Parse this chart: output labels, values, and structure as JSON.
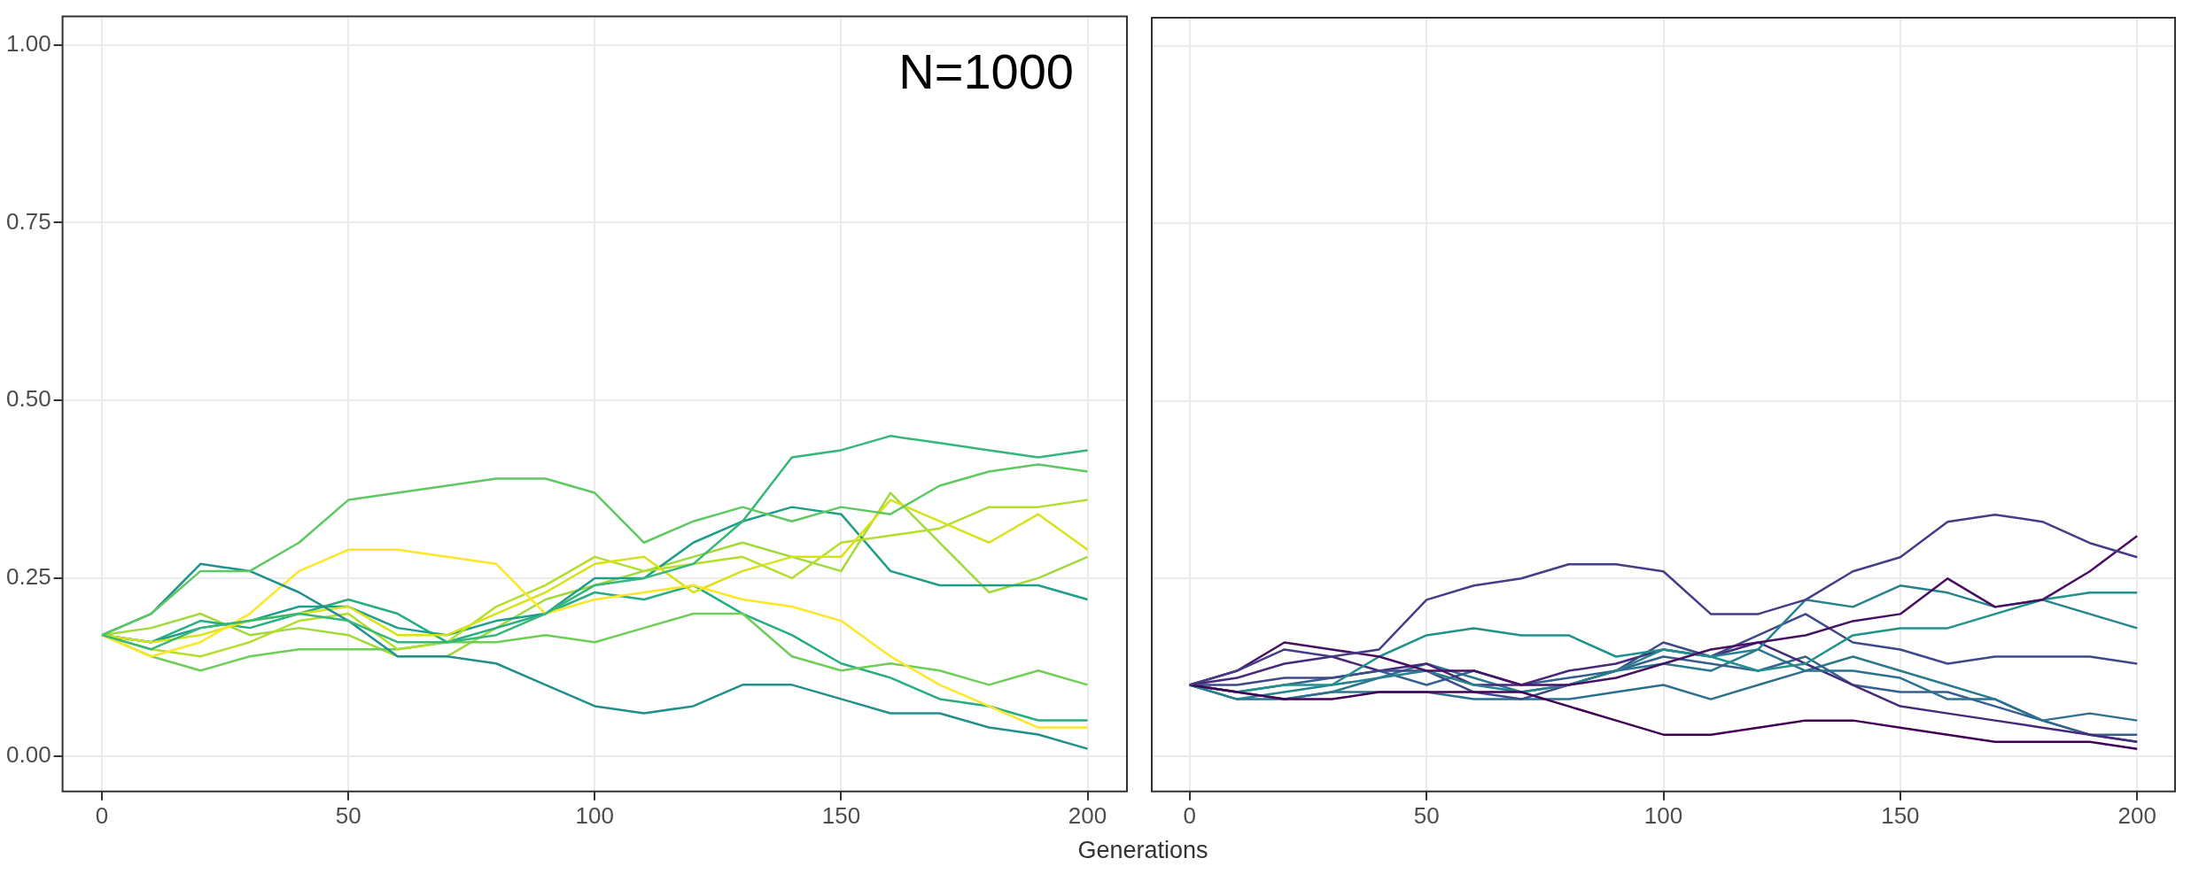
{
  "chart_data": [
    {
      "type": "line",
      "xlabel": "Generations",
      "annotations": [
        "N=1000"
      ],
      "xlim": [
        -8,
        208
      ],
      "xticks": [
        0,
        50,
        100,
        150,
        200
      ],
      "ylim": [
        -0.05,
        1.04
      ],
      "yticks": [
        {
          "value": 0,
          "label": "0.00"
        },
        {
          "value": 0.25,
          "label": "0.25"
        },
        {
          "value": 0.5,
          "label": "0.50"
        },
        {
          "value": 0.75,
          "label": "0.75"
        },
        {
          "value": 1,
          "label": "1.00"
        }
      ],
      "grid": true,
      "x": [
        0,
        10,
        20,
        30,
        40,
        50,
        60,
        70,
        80,
        90,
        100,
        110,
        120,
        130,
        140,
        150,
        160,
        170,
        180,
        190,
        200
      ],
      "series": [
        {
          "color": "#5ec962",
          "values": [
            0.17,
            0.2,
            0.26,
            0.26,
            0.3,
            0.36,
            0.37,
            0.38,
            0.39,
            0.39,
            0.37,
            0.3,
            0.33,
            0.35,
            0.33,
            0.35,
            0.34,
            0.38,
            0.4,
            0.41,
            0.4
          ]
        },
        {
          "color": "#35b779",
          "values": [
            0.17,
            0.15,
            0.18,
            0.19,
            0.2,
            0.19,
            0.16,
            0.16,
            0.17,
            0.2,
            0.24,
            0.25,
            0.27,
            0.33,
            0.42,
            0.43,
            0.45,
            0.44,
            0.43,
            0.42,
            0.43
          ]
        },
        {
          "color": "#21908d",
          "values": [
            0.17,
            0.2,
            0.27,
            0.26,
            0.23,
            0.19,
            0.14,
            0.14,
            0.13,
            0.1,
            0.07,
            0.06,
            0.07,
            0.1,
            0.1,
            0.08,
            0.06,
            0.06,
            0.04,
            0.03,
            0.01
          ]
        },
        {
          "color": "#fde725",
          "values": [
            0.17,
            0.14,
            0.16,
            0.2,
            0.26,
            0.29,
            0.29,
            0.28,
            0.27,
            0.2,
            0.22,
            0.23,
            0.24,
            0.22,
            0.21,
            0.19,
            0.14,
            0.1,
            0.07,
            0.04,
            0.04
          ]
        },
        {
          "color": "#d8e219",
          "values": [
            0.17,
            0.16,
            0.17,
            0.19,
            0.2,
            0.21,
            0.17,
            0.17,
            0.2,
            0.23,
            0.27,
            0.28,
            0.23,
            0.26,
            0.28,
            0.28,
            0.36,
            0.33,
            0.3,
            0.34,
            0.29
          ]
        },
        {
          "color": "#b5de2b",
          "values": [
            0.17,
            0.15,
            0.14,
            0.16,
            0.19,
            0.2,
            0.15,
            0.16,
            0.21,
            0.24,
            0.28,
            0.26,
            0.27,
            0.28,
            0.25,
            0.3,
            0.31,
            0.32,
            0.35,
            0.35,
            0.36
          ]
        },
        {
          "color": "#6ece58",
          "values": [
            0.17,
            0.14,
            0.12,
            0.14,
            0.15,
            0.15,
            0.15,
            0.16,
            0.16,
            0.17,
            0.16,
            0.18,
            0.2,
            0.2,
            0.14,
            0.12,
            0.13,
            0.12,
            0.1,
            0.12,
            0.1
          ]
        },
        {
          "color": "#1f9e89",
          "values": [
            0.17,
            0.16,
            0.18,
            0.19,
            0.21,
            0.21,
            0.18,
            0.17,
            0.19,
            0.2,
            0.25,
            0.25,
            0.3,
            0.33,
            0.35,
            0.34,
            0.26,
            0.24,
            0.24,
            0.24,
            0.22
          ]
        },
        {
          "color": "#26ad81",
          "values": [
            0.17,
            0.16,
            0.19,
            0.18,
            0.2,
            0.22,
            0.2,
            0.16,
            0.18,
            0.2,
            0.23,
            0.22,
            0.24,
            0.2,
            0.17,
            0.13,
            0.11,
            0.08,
            0.07,
            0.05,
            0.05
          ]
        },
        {
          "color": "#a0da39",
          "values": [
            0.17,
            0.18,
            0.2,
            0.17,
            0.18,
            0.17,
            0.14,
            0.14,
            0.18,
            0.22,
            0.24,
            0.26,
            0.28,
            0.3,
            0.28,
            0.26,
            0.37,
            0.3,
            0.23,
            0.25,
            0.28
          ]
        }
      ]
    },
    {
      "type": "line",
      "tick_labels": "x",
      "xlim": [
        -8,
        208
      ],
      "xticks": [
        0,
        50,
        100,
        150,
        200
      ],
      "ylim": [
        -0.05,
        1.04
      ],
      "yticks": [
        {
          "value": 0,
          "label": null
        },
        {
          "value": 0.25,
          "label": null
        },
        {
          "value": 0.5,
          "label": null
        },
        {
          "value": 0.75,
          "label": null
        },
        {
          "value": 1,
          "label": null
        }
      ],
      "grid": true,
      "x": [
        0,
        10,
        20,
        30,
        40,
        50,
        60,
        70,
        80,
        90,
        100,
        110,
        120,
        130,
        140,
        150,
        160,
        170,
        180,
        190,
        200
      ],
      "series": [
        {
          "color": "#433e85",
          "values": [
            0.1,
            0.12,
            0.15,
            0.14,
            0.15,
            0.22,
            0.24,
            0.25,
            0.27,
            0.27,
            0.26,
            0.2,
            0.2,
            0.22,
            0.26,
            0.28,
            0.33,
            0.34,
            0.33,
            0.3,
            0.28
          ]
        },
        {
          "color": "#440154",
          "values": [
            0.1,
            0.09,
            0.08,
            0.08,
            0.09,
            0.09,
            0.09,
            0.09,
            0.07,
            0.05,
            0.03,
            0.03,
            0.04,
            0.05,
            0.05,
            0.04,
            0.03,
            0.02,
            0.02,
            0.02,
            0.01
          ]
        },
        {
          "color": "#471063",
          "values": [
            0.1,
            0.12,
            0.16,
            0.15,
            0.14,
            0.12,
            0.12,
            0.1,
            0.1,
            0.11,
            0.13,
            0.15,
            0.16,
            0.17,
            0.19,
            0.2,
            0.25,
            0.21,
            0.22,
            0.26,
            0.31
          ]
        },
        {
          "color": "#21918c",
          "values": [
            0.1,
            0.09,
            0.1,
            0.1,
            0.14,
            0.17,
            0.18,
            0.17,
            0.17,
            0.14,
            0.15,
            0.14,
            0.12,
            0.13,
            0.17,
            0.18,
            0.18,
            0.2,
            0.22,
            0.23,
            0.23
          ]
        },
        {
          "color": "#26828e",
          "values": [
            0.1,
            0.08,
            0.09,
            0.1,
            0.11,
            0.12,
            0.1,
            0.09,
            0.1,
            0.12,
            0.15,
            0.14,
            0.15,
            0.22,
            0.21,
            0.24,
            0.23,
            0.21,
            0.22,
            0.2,
            0.18
          ]
        },
        {
          "color": "#3e4989",
          "values": [
            0.1,
            0.1,
            0.11,
            0.11,
            0.12,
            0.12,
            0.09,
            0.08,
            0.1,
            0.12,
            0.16,
            0.14,
            0.17,
            0.2,
            0.16,
            0.15,
            0.13,
            0.14,
            0.14,
            0.14,
            0.13
          ]
        },
        {
          "color": "#2d708e",
          "values": [
            0.1,
            0.08,
            0.08,
            0.09,
            0.09,
            0.09,
            0.08,
            0.08,
            0.08,
            0.09,
            0.1,
            0.08,
            0.1,
            0.12,
            0.12,
            0.11,
            0.08,
            0.08,
            0.05,
            0.06,
            0.05
          ]
        },
        {
          "color": "#482878",
          "values": [
            0.1,
            0.11,
            0.13,
            0.14,
            0.12,
            0.13,
            0.1,
            0.1,
            0.12,
            0.13,
            0.15,
            0.14,
            0.16,
            0.13,
            0.1,
            0.07,
            0.06,
            0.05,
            0.04,
            0.03,
            0.02
          ]
        },
        {
          "color": "#355f8d",
          "values": [
            0.1,
            0.09,
            0.1,
            0.11,
            0.12,
            0.1,
            0.12,
            0.1,
            0.11,
            0.12,
            0.14,
            0.13,
            0.12,
            0.14,
            0.1,
            0.09,
            0.09,
            0.07,
            0.05,
            0.03,
            0.03
          ]
        },
        {
          "color": "#2a788e",
          "values": [
            0.1,
            0.09,
            0.08,
            0.09,
            0.11,
            0.13,
            0.11,
            0.09,
            0.1,
            0.12,
            0.13,
            0.12,
            0.15,
            0.12,
            0.14,
            0.12,
            0.1,
            0.08,
            0.05,
            0.03,
            0.02
          ]
        }
      ]
    }
  ]
}
